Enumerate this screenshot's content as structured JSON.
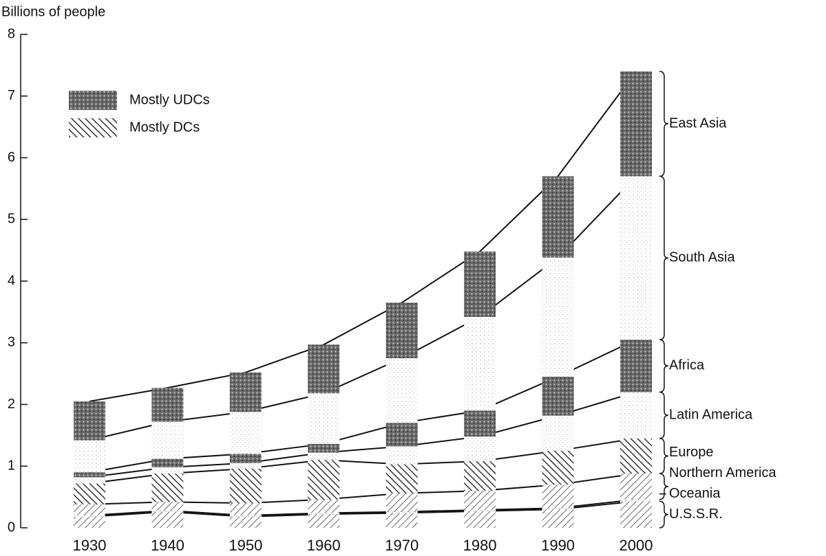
{
  "chart_data": {
    "type": "stacked_bar",
    "y_label": "Billions of people",
    "categories": [
      "1930",
      "1940",
      "1950",
      "1960",
      "1970",
      "1980",
      "1990",
      "2000"
    ],
    "series": [
      {
        "name": "U.S.S.R.",
        "pattern": "hatch-back",
        "values": [
          0.18,
          0.26,
          0.18,
          0.22,
          0.24,
          0.27,
          0.3,
          0.43
        ]
      },
      {
        "name": "Oceania",
        "pattern": "hatch-light",
        "values": [
          0.02,
          0.02,
          0.02,
          0.02,
          0.02,
          0.02,
          0.02,
          0.03
        ]
      },
      {
        "name": "Northern America",
        "pattern": "hatch-back",
        "values": [
          0.18,
          0.14,
          0.2,
          0.22,
          0.3,
          0.31,
          0.38,
          0.42
        ]
      },
      {
        "name": "Europe",
        "pattern": "hatch",
        "values": [
          0.34,
          0.46,
          0.56,
          0.64,
          0.47,
          0.48,
          0.55,
          0.57
        ]
      },
      {
        "name": "Latin America",
        "pattern": "light",
        "values": [
          0.1,
          0.1,
          0.09,
          0.12,
          0.29,
          0.4,
          0.57,
          0.75
        ]
      },
      {
        "name": "Africa",
        "pattern": "dark",
        "values": [
          0.08,
          0.14,
          0.15,
          0.14,
          0.38,
          0.42,
          0.63,
          0.85
        ]
      },
      {
        "name": "South Asia",
        "pattern": "light",
        "values": [
          0.52,
          0.6,
          0.68,
          0.82,
          1.05,
          1.52,
          1.93,
          2.65
        ]
      },
      {
        "name": "East Asia",
        "pattern": "dark",
        "values": [
          0.63,
          0.55,
          0.64,
          0.79,
          0.9,
          1.06,
          1.32,
          1.7
        ]
      }
    ],
    "legend": [
      {
        "label": "Mostly UDCs",
        "pattern": "dark"
      },
      {
        "label": "Mostly DCs",
        "pattern": "hatch"
      }
    ],
    "ylim": [
      0,
      8
    ],
    "yticks": [
      0,
      1,
      2,
      3,
      4,
      5,
      6,
      7,
      8
    ]
  }
}
